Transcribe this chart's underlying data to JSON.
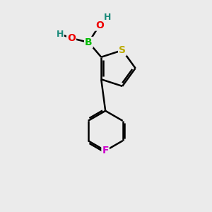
{
  "background_color": "#ebebeb",
  "atom_colors": {
    "C": "#000000",
    "H": "#1a8a7a",
    "O": "#ee0000",
    "B": "#00bb00",
    "S": "#bbaa00",
    "F": "#cc00cc"
  },
  "bond_color": "#000000",
  "bond_width": 1.8,
  "dbo": 0.09,
  "figsize": [
    3.0,
    3.0
  ],
  "dpi": 100,
  "xlim": [
    0,
    10
  ],
  "ylim": [
    0,
    10
  ]
}
